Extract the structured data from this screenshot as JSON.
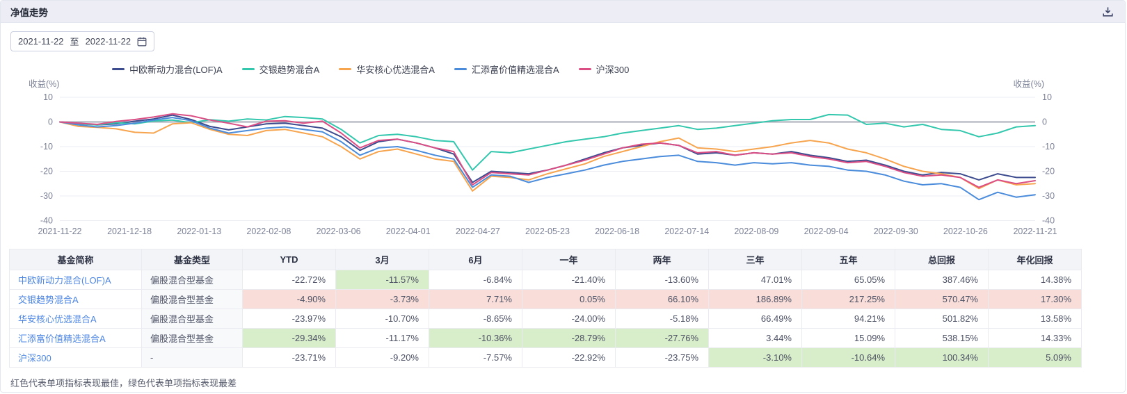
{
  "panel": {
    "title": "净值走势"
  },
  "date_range": {
    "start": "2021-11-22",
    "to_label": "至",
    "end": "2022-11-22"
  },
  "chart_data": {
    "type": "line",
    "ylabel_left": "收益(%)",
    "ylabel_right": "收益(%)",
    "ylim": [
      -40,
      10
    ],
    "yticks": [
      10,
      0,
      -10,
      -20,
      -30,
      -40
    ],
    "grid": true,
    "legend_position": "top-left",
    "x_tick_labels": [
      "2021-11-22",
      "2021-12-18",
      "2022-01-13",
      "2022-02-08",
      "2022-03-06",
      "2022-04-01",
      "2022-04-27",
      "2022-05-23",
      "2022-06-18",
      "2022-07-14",
      "2022-08-09",
      "2022-09-04",
      "2022-09-30",
      "2022-10-26",
      "2022-11-21"
    ],
    "series": [
      {
        "name": "中欧新动力混合(LOF)A",
        "color": "#3D4B8F",
        "values": [
          0,
          -0.6,
          -1.2,
          -0.8,
          0.3,
          1.2,
          2.8,
          1.0,
          -1.8,
          -3.2,
          -2.0,
          -0.8,
          -0.5,
          -1.5,
          -2.5,
          -6,
          -11.5,
          -8,
          -7,
          -8.5,
          -10.5,
          -13,
          -24.5,
          -20,
          -20.5,
          -21,
          -19.5,
          -17.5,
          -15,
          -12.5,
          -10.5,
          -9.5,
          -8.5,
          -9.5,
          -13,
          -12.5,
          -13.5,
          -12.5,
          -13,
          -12,
          -13.5,
          -14.5,
          -16,
          -15.5,
          -17.5,
          -20,
          -21.5,
          -20.5,
          -21,
          -23.5,
          -21,
          -22.5,
          -22.5
        ]
      },
      {
        "name": "交银趋势混合A",
        "color": "#33C7AD",
        "values": [
          0,
          -0.8,
          -1.2,
          -0.3,
          -0.8,
          0.4,
          0.8,
          -0.3,
          0.9,
          0.3,
          1.2,
          0.8,
          2.2,
          1.8,
          1.2,
          -3,
          -8.5,
          -5.5,
          -5,
          -6,
          -7.5,
          -8,
          -19.5,
          -12,
          -12.5,
          -11,
          -9.5,
          -8,
          -7,
          -6,
          -4.5,
          -3.5,
          -2.5,
          -1.5,
          -3,
          -2.5,
          -1.5,
          -0.5,
          0.5,
          1,
          1,
          3,
          2.8,
          -1,
          -0.5,
          -2,
          -1,
          -3,
          -3.5,
          -6,
          -4.5,
          -2,
          -1.5
        ]
      },
      {
        "name": "华安核心优选混合A",
        "color": "#F7A44E",
        "values": [
          0,
          -1.8,
          -2.2,
          -2.8,
          -4.2,
          -4.5,
          -0.8,
          -0.3,
          -3,
          -5,
          -5.5,
          -3.5,
          -3,
          -4.5,
          -6,
          -10,
          -15,
          -12,
          -11,
          -13,
          -15,
          -16,
          -28,
          -22,
          -22.5,
          -23.5,
          -21,
          -19,
          -17,
          -14,
          -12,
          -10,
          -8,
          -6.5,
          -10.5,
          -11,
          -12,
          -11,
          -10,
          -8.5,
          -7.5,
          -8.5,
          -11,
          -12.5,
          -15,
          -18,
          -20,
          -21,
          -22.5,
          -27,
          -23.5,
          -25.5,
          -25
        ]
      },
      {
        "name": "汇添富价值精选混合A",
        "color": "#4A8CDB",
        "values": [
          0,
          -1.2,
          -2,
          -1.5,
          -0.5,
          0.8,
          1.8,
          0.5,
          -2.5,
          -4.5,
          -3.5,
          -2.5,
          -2,
          -3,
          -4,
          -8,
          -13.5,
          -10.5,
          -10,
          -11.5,
          -13.5,
          -15,
          -26.5,
          -21.5,
          -22,
          -24.5,
          -22.5,
          -21,
          -19.5,
          -17.5,
          -16,
          -15,
          -14,
          -13.5,
          -16,
          -16.5,
          -17.5,
          -16.5,
          -17,
          -16.5,
          -17.5,
          -18,
          -19.5,
          -20,
          -21.5,
          -24,
          -25.5,
          -25,
          -26.5,
          -31.5,
          -28.5,
          -30.5,
          -29.5
        ]
      },
      {
        "name": "沪深300",
        "color": "#DA4E84",
        "values": [
          0,
          -0.5,
          -1,
          0.2,
          1,
          2,
          3.3,
          2.5,
          0.8,
          -0.5,
          -2,
          0.3,
          0.5,
          -0.5,
          0.3,
          -4.5,
          -10.5,
          -7.5,
          -7,
          -8.5,
          -10.5,
          -12,
          -25.5,
          -20.5,
          -21,
          -21.5,
          -19.5,
          -17.5,
          -15.5,
          -13,
          -10.5,
          -9,
          -8.5,
          -9.5,
          -12.5,
          -12,
          -13.5,
          -12.5,
          -13,
          -12.5,
          -14,
          -15,
          -16.5,
          -16,
          -18,
          -20.5,
          -22,
          -21.5,
          -22.5,
          -26.5,
          -23.5,
          -25,
          -23.8
        ]
      }
    ]
  },
  "table": {
    "headers": [
      "基金简称",
      "基金类型",
      "YTD",
      "3月",
      "6月",
      "一年",
      "两年",
      "三年",
      "五年",
      "总回报",
      "年化回报"
    ],
    "rows": [
      {
        "name": "中欧新动力混合(LOF)A",
        "type": "偏股混合型基金",
        "values": [
          "-22.72%",
          "-11.57%",
          "-6.84%",
          "-21.40%",
          "-13.60%",
          "47.01%",
          "65.05%",
          "387.46%",
          "14.38%"
        ],
        "highlights": [
          "",
          "worst",
          "",
          "",
          "",
          "",
          "",
          "",
          ""
        ]
      },
      {
        "name": "交银趋势混合A",
        "type": "偏股混合型基金",
        "values": [
          "-4.90%",
          "-3.73%",
          "7.71%",
          "0.05%",
          "66.10%",
          "186.89%",
          "217.25%",
          "570.47%",
          "17.30%"
        ],
        "highlights": [
          "best",
          "best",
          "best",
          "best",
          "best",
          "best",
          "best",
          "best",
          "best"
        ]
      },
      {
        "name": "华安核心优选混合A",
        "type": "偏股混合型基金",
        "values": [
          "-23.97%",
          "-10.70%",
          "-8.65%",
          "-24.00%",
          "-5.18%",
          "66.49%",
          "94.21%",
          "501.82%",
          "13.58%"
        ],
        "highlights": [
          "",
          "",
          "",
          "",
          "",
          "",
          "",
          "",
          ""
        ]
      },
      {
        "name": "汇添富价值精选混合A",
        "type": "偏股混合型基金",
        "values": [
          "-29.34%",
          "-11.17%",
          "-10.36%",
          "-28.79%",
          "-27.76%",
          "3.44%",
          "15.09%",
          "538.15%",
          "14.33%"
        ],
        "highlights": [
          "worst",
          "",
          "worst",
          "worst",
          "worst",
          "",
          "",
          "",
          ""
        ]
      },
      {
        "name": "沪深300",
        "type": "-",
        "values": [
          "-23.71%",
          "-9.20%",
          "-7.57%",
          "-22.92%",
          "-23.75%",
          "-3.10%",
          "-10.64%",
          "100.34%",
          "5.09%"
        ],
        "highlights": [
          "",
          "",
          "",
          "",
          "",
          "worst",
          "worst",
          "worst",
          "worst"
        ]
      }
    ],
    "footnote": "红色代表单项指标表现最佳，绿色代表单项指标表现最差"
  },
  "colors": {
    "best_bg": "#F8DDD9",
    "worst_bg": "#D8EDC9",
    "link": "#4E86E2",
    "header_bar_bg": "#ECEDF5",
    "zero_line": "#A8ACB8",
    "gridline": "#EBEDF3"
  }
}
